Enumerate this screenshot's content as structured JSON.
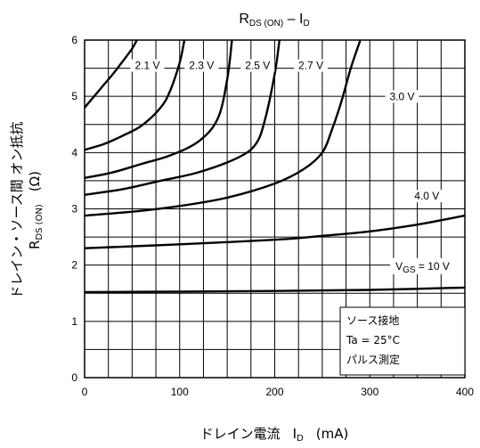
{
  "chart_data": {
    "type": "line",
    "title": {
      "main": "R",
      "sub": "DS (ON)",
      "sep": " – I",
      "sub2": "D"
    },
    "xlabel": {
      "text": "ドレイン電流",
      "symbol": "I",
      "sub": "D",
      "unit": "(mA)"
    },
    "ylabel": {
      "line1": "ドレイン・ソース間 オン抵抗",
      "line2_main": "R",
      "line2_sub": "DS (ON)",
      "line2_unit": "(Ω)"
    },
    "xlim": [
      0,
      400
    ],
    "ylim": [
      0,
      6
    ],
    "xticks": [
      0,
      100,
      200,
      300,
      400
    ],
    "yticks": [
      0,
      1,
      2,
      3,
      4,
      5,
      6
    ],
    "grid": true,
    "series": [
      {
        "name": "2.1 V",
        "x": [
          0,
          10,
          20,
          30,
          40,
          50,
          55
        ],
        "y": [
          4.8,
          5.0,
          5.2,
          5.4,
          5.62,
          5.85,
          6.0
        ]
      },
      {
        "name": "2.3 V",
        "x": [
          0,
          20,
          40,
          60,
          80,
          90,
          100,
          105
        ],
        "y": [
          4.05,
          4.15,
          4.3,
          4.48,
          4.8,
          5.1,
          5.6,
          6.0
        ]
      },
      {
        "name": "2.5 V",
        "x": [
          0,
          30,
          60,
          90,
          120,
          140,
          150,
          155
        ],
        "y": [
          3.55,
          3.65,
          3.8,
          3.95,
          4.2,
          4.6,
          5.3,
          6.0
        ]
      },
      {
        "name": "2.7 V",
        "x": [
          0,
          40,
          80,
          120,
          160,
          180,
          190,
          200,
          205
        ],
        "y": [
          3.25,
          3.35,
          3.5,
          3.65,
          3.9,
          4.15,
          4.6,
          5.4,
          6.0
        ]
      },
      {
        "name": "3.0 V",
        "x": [
          0,
          50,
          100,
          150,
          200,
          230,
          250,
          260,
          270,
          280,
          290
        ],
        "y": [
          2.88,
          2.95,
          3.05,
          3.2,
          3.45,
          3.7,
          4.0,
          4.4,
          4.9,
          5.5,
          6.0
        ]
      },
      {
        "name": "4.0 V",
        "x": [
          0,
          100,
          200,
          250,
          300,
          350,
          400
        ],
        "y": [
          2.3,
          2.37,
          2.45,
          2.52,
          2.6,
          2.72,
          2.88
        ]
      },
      {
        "name": "V_GS = 10 V",
        "x": [
          0,
          100,
          200,
          300,
          400
        ],
        "y": [
          1.52,
          1.53,
          1.54,
          1.56,
          1.6
        ]
      }
    ],
    "curve_labels": [
      {
        "text": "2.1 V",
        "x": 66,
        "y": 5.5
      },
      {
        "text": "2.3 V",
        "x": 123,
        "y": 5.5
      },
      {
        "text": "2.5 V",
        "x": 182,
        "y": 5.5
      },
      {
        "text": "2.7 V",
        "x": 238,
        "y": 5.5
      },
      {
        "text": "3.0 V",
        "x": 334,
        "y": 4.95
      },
      {
        "text": "4.0 V",
        "x": 360,
        "y": 3.18
      }
    ],
    "vgs_label": {
      "main": "V",
      "sub": "GS",
      "rest": " = 10 V",
      "x": 327,
      "y": 1.95
    },
    "conditions": [
      "ソース接地",
      "Ta = 25°C",
      "パルス測定"
    ]
  }
}
